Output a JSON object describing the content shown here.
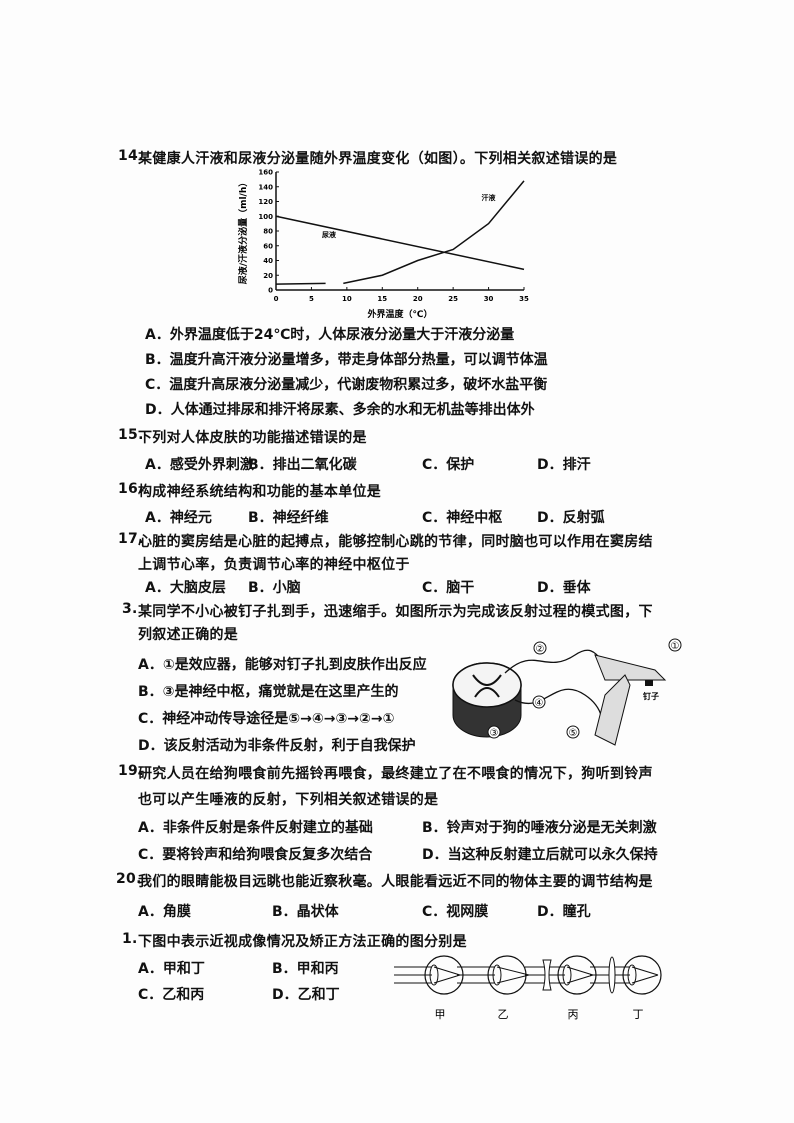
{
  "questions": [
    {
      "num": "14.",
      "stem": [
        "某健康人汗液和尿液分泌量随外界温度变化（如图）。下列相关叙述错误的是"
      ],
      "options": [
        "A．外界温度低于24℃时，人体尿液分泌量大于汗液分泌量",
        "B．温度升高汗液分泌量增多，带走身体部分热量，可以调节体温",
        "C．温度升高尿液分泌量减少，代谢废物积累过多，破坏水盐平衡",
        "D．人体通过排尿和排汗将尿素、多余的水和无机盐等排出体外"
      ]
    },
    {
      "num": "15.",
      "stem": [
        "下列对人体皮肤的功能描述错误的是"
      ],
      "options": [
        "A．感受外界刺激",
        "B．排出二氧化碳",
        "C．保护",
        "D．排汗"
      ]
    },
    {
      "num": "16.",
      "stem": [
        "构成神经系统结构和功能的基本单位是"
      ],
      "options": [
        "A．神经元",
        "B．神经纤维",
        "C．神经中枢",
        "D．反射弧"
      ]
    },
    {
      "num": "17.",
      "stem": [
        "心脏的窦房结是心脏的起搏点，能够控制心跳的节律，同时脑也可以作用在窦房结",
        "上调节心率，负责调节心率的神经中枢位于"
      ],
      "options": [
        "A．大脑皮层",
        "B．小脑",
        "C．脑干",
        "D．垂体"
      ]
    },
    {
      "num": "3.",
      "stem": [
        "某同学不小心被钉子扎到手，迅速缩手。如图所示为完成该反射过程的模式图，下",
        "列叙述正确的是"
      ],
      "options": [
        "A．①是效应器，能够对钉子扎到皮肤作出反应",
        "B．③是神经中枢，痛觉就是在这里产生的",
        "C．神经冲动传导途径是⑤→④→③→②→①",
        "D．该反射活动为非条件反射，利于自我保护"
      ]
    },
    {
      "num": "19.",
      "stem": [
        "研究人员在给狗喂食前先摇铃再喂食，最终建立了在不喂食的情况下，狗听到铃声",
        "也可以产生唾液的反射，下列相关叙述错误的是"
      ],
      "options": [
        "A．非条件反射是条件反射建立的基础",
        "B．铃声对于狗的唾液分泌是无关刺激",
        "C．要将铃声和给狗喂食反复多次结合",
        "D．当这种反射建立后就可以永久保持"
      ]
    },
    {
      "num": "20.",
      "stem": [
        "我们的眼睛能极目远眺也能近察秋毫。人眼能看远近不同的物体主要的调节结构是"
      ],
      "options": [
        "A．角膜",
        "B．晶状体",
        "C．视网膜",
        "D．瞳孔"
      ]
    },
    {
      "num": "1.",
      "stem": [
        "下图中表示近视成像情况及矫正方法正确的图分别是"
      ],
      "options": [
        "A．甲和丁",
        "B．甲和丙",
        "C．乙和丙",
        "D．乙和丁"
      ]
    }
  ],
  "reflex_labels": {
    "c1": "①",
    "c2": "②",
    "c3": "③",
    "c4": "④",
    "c5": "⑤",
    "nail": "钉子"
  },
  "eye_labels": [
    "甲",
    "乙",
    "丙",
    "丁"
  ],
  "chart_data": {
    "type": "line",
    "ylabel": "尿液/汗液分泌量（ml/h）",
    "xlabel": "外界温度（℃）",
    "xlim": [
      0,
      35
    ],
    "ylim": [
      0,
      160
    ],
    "xticks": [
      0,
      5,
      10,
      15,
      20,
      25,
      30,
      35
    ],
    "yticks": [
      0,
      20,
      40,
      60,
      80,
      100,
      120,
      140,
      160
    ],
    "grid": false,
    "series": [
      {
        "name": "尿液",
        "x": [
          0,
          35
        ],
        "y": [
          100,
          28
        ]
      },
      {
        "name": "汗液",
        "segments": [
          {
            "x": [
              0,
              7
            ],
            "y": [
              8,
              9
            ]
          },
          {
            "x": [
              9.5,
              10,
              15,
              20,
              25,
              30,
              35
            ],
            "y": [
              9,
              10,
              20,
              40,
              55,
              90,
              148
            ]
          }
        ]
      }
    ]
  }
}
